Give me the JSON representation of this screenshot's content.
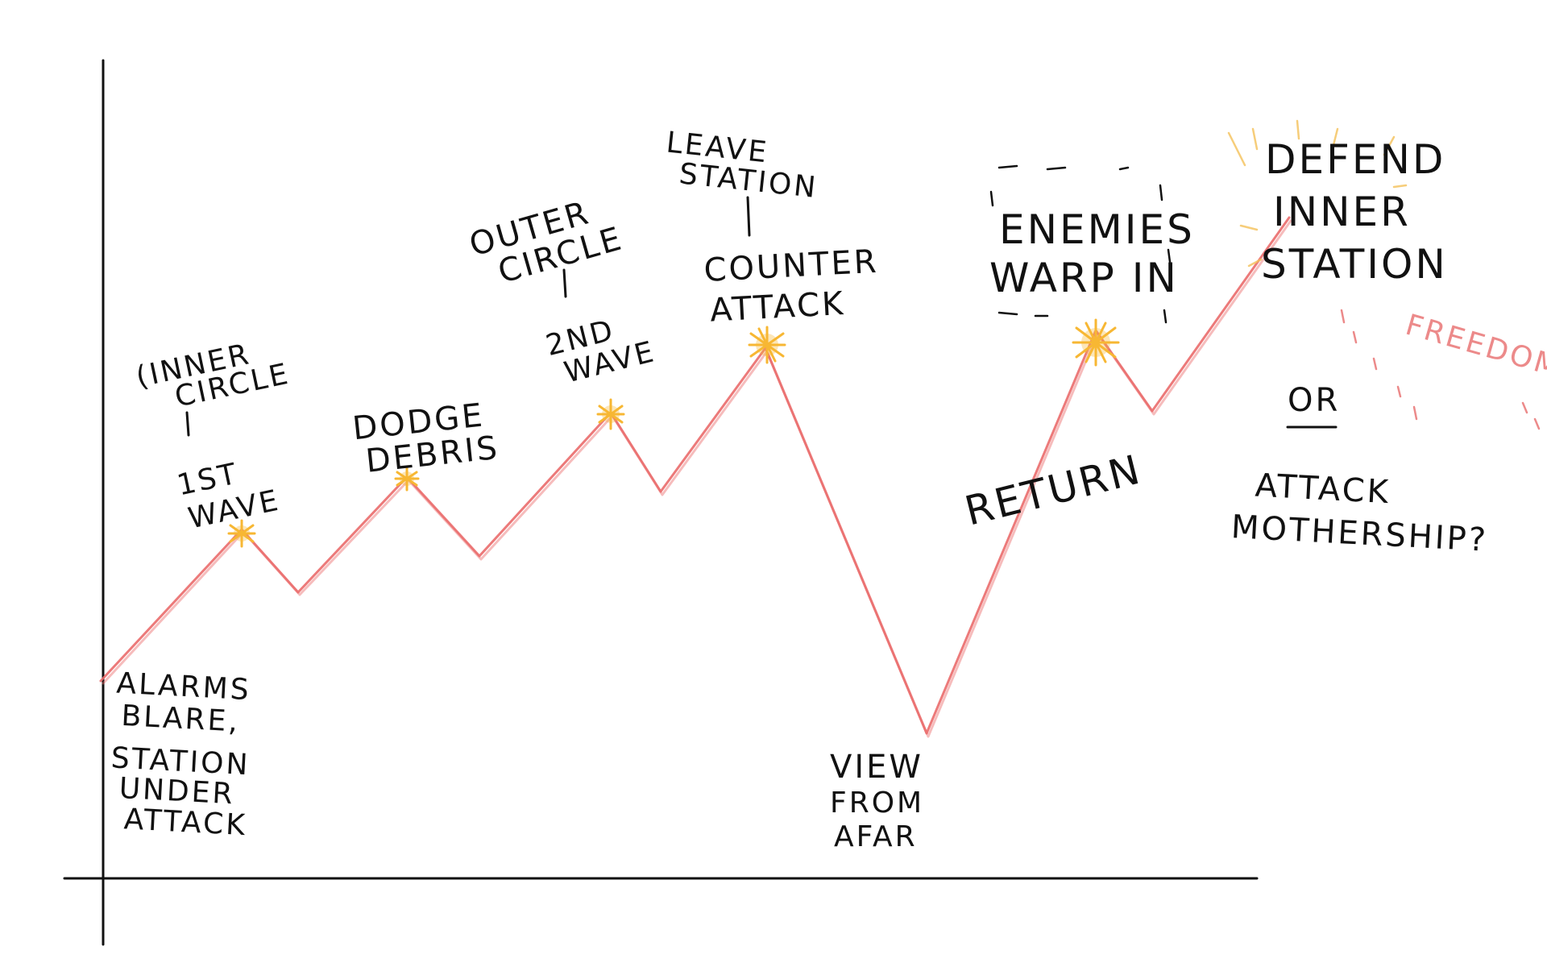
{
  "labels": {
    "alarms": [
      "ALARMS",
      "BLARE,",
      "STATION",
      "UNDER",
      "ATTACK"
    ],
    "inner_circle": [
      "(INNER",
      "CIRCLE"
    ],
    "first_wave": [
      "1ST",
      "WAVE"
    ],
    "dodge_debris": [
      "DODGE",
      "DEBRIS"
    ],
    "outer_circle": [
      "OUTER",
      "CIRCLE"
    ],
    "second_wave": [
      "2ND",
      "WAVE"
    ],
    "leave_station": [
      "LEAVE",
      "STATION"
    ],
    "counter_attack": [
      "COUNTER",
      "ATTACK"
    ],
    "view_from_afar": [
      "VIEW",
      "FROM",
      "AFAR"
    ],
    "return": "RETURN",
    "enemies_warp_in": [
      "ENEMIES",
      "WARP IN"
    ],
    "defend_inner_station": [
      "DEFEND",
      "INNER",
      "STATION"
    ],
    "freedom": "FREEDOM",
    "or": "OR",
    "attack_mothership": [
      "ATTACK",
      "MOTHERSHIP?"
    ]
  },
  "colors": {
    "ink": "#111111",
    "curve": "#ea6b6b",
    "spark": "#f7b733",
    "freedom": "#ec8a8a"
  },
  "icons": [
    "star-burst-icon"
  ]
}
